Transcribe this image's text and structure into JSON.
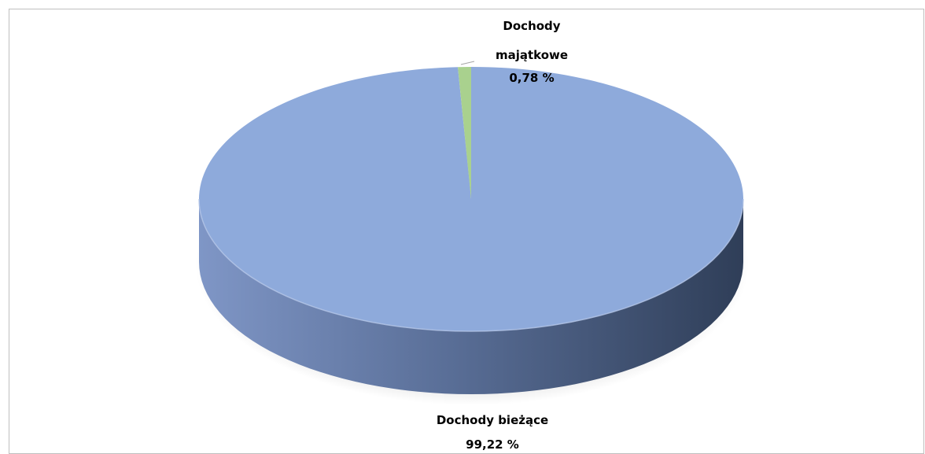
{
  "chart_data": {
    "type": "pie",
    "style": "3d",
    "slices": [
      {
        "label_lines": [
          "Dochody bieżące"
        ],
        "value": 99.22,
        "value_label": "99,22 %",
        "color": "#8eaadb"
      },
      {
        "label_lines": [
          "Dochody",
          "majątkowe"
        ],
        "value": 0.78,
        "value_label": "0,78 %",
        "color": "#a9d18e"
      }
    ],
    "legend": "none"
  }
}
